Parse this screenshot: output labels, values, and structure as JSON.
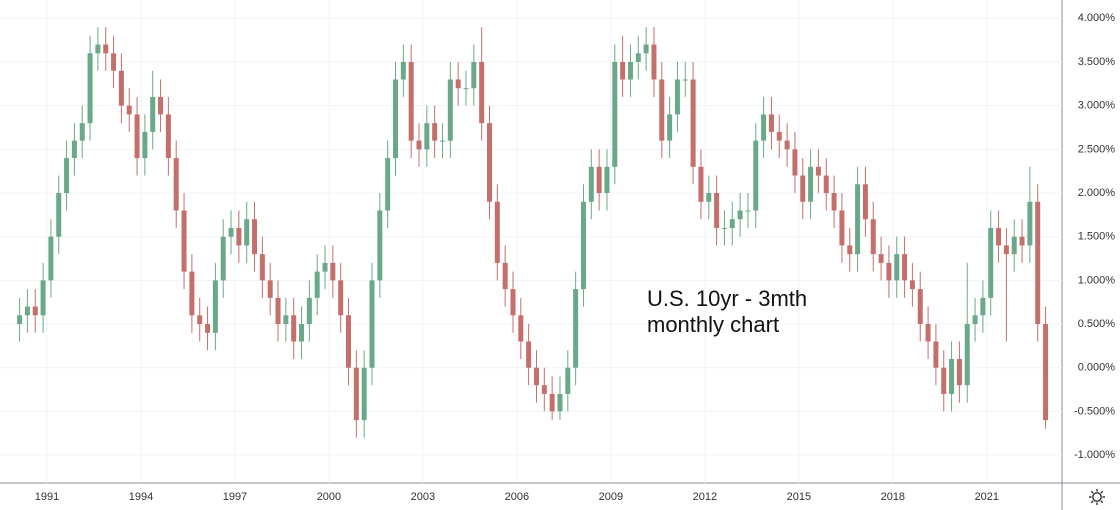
{
  "chart_data": {
    "type": "candlestick",
    "annotation": [
      "U.S. 10yr - 3mth",
      "monthly chart"
    ],
    "up_color": "#6aa889",
    "down_color": "#c46f6b",
    "grid": true,
    "xlim": [
      1989.5,
      2023.4
    ],
    "xticks": [
      1991,
      1994,
      1997,
      2000,
      2003,
      2006,
      2009,
      2012,
      2015,
      2018,
      2021
    ],
    "ylim": [
      -1.32,
      4.21
    ],
    "yticks": [
      {
        "value": 4,
        "label": "4.000%"
      },
      {
        "value": 3.5,
        "label": "3.500%"
      },
      {
        "value": 3,
        "label": "3.000%"
      },
      {
        "value": 2.5,
        "label": "2.500%"
      },
      {
        "value": 2,
        "label": "2.000%"
      },
      {
        "value": 1.5,
        "label": "1.500%"
      },
      {
        "value": 1,
        "label": "1.000%"
      },
      {
        "value": 0.5,
        "label": "0.500%"
      },
      {
        "value": 0,
        "label": "0.000%"
      },
      {
        "value": -0.5,
        "label": "-0.500%"
      },
      {
        "value": -1,
        "label": "-1.000%"
      }
    ],
    "x": [
      1990.125,
      1990.375,
      1990.625,
      1990.875,
      1991.125,
      1991.375,
      1991.625,
      1991.875,
      1992.125,
      1992.375,
      1992.625,
      1992.875,
      1993.125,
      1993.375,
      1993.625,
      1993.875,
      1994.125,
      1994.375,
      1994.625,
      1994.875,
      1995.125,
      1995.375,
      1995.625,
      1995.875,
      1996.125,
      1996.375,
      1996.625,
      1996.875,
      1997.125,
      1997.375,
      1997.625,
      1997.875,
      1998.125,
      1998.375,
      1998.625,
      1998.875,
      1999.125,
      1999.375,
      1999.625,
      1999.875,
      2000.125,
      2000.375,
      2000.625,
      2000.875,
      2001.125,
      2001.375,
      2001.625,
      2001.875,
      2002.125,
      2002.375,
      2002.625,
      2002.875,
      2003.125,
      2003.375,
      2003.625,
      2003.875,
      2004.125,
      2004.375,
      2004.625,
      2004.875,
      2005.125,
      2005.375,
      2005.625,
      2005.875,
      2006.125,
      2006.375,
      2006.625,
      2006.875,
      2007.125,
      2007.375,
      2007.625,
      2007.875,
      2008.125,
      2008.375,
      2008.625,
      2008.875,
      2009.125,
      2009.375,
      2009.625,
      2009.875,
      2010.125,
      2010.375,
      2010.625,
      2010.875,
      2011.125,
      2011.375,
      2011.625,
      2011.875,
      2012.125,
      2012.375,
      2012.625,
      2012.875,
      2013.125,
      2013.375,
      2013.625,
      2013.875,
      2014.125,
      2014.375,
      2014.625,
      2014.875,
      2015.125,
      2015.375,
      2015.625,
      2015.875,
      2016.125,
      2016.375,
      2016.625,
      2016.875,
      2017.125,
      2017.375,
      2017.625,
      2017.875,
      2018.125,
      2018.375,
      2018.625,
      2018.875,
      2019.125,
      2019.375,
      2019.625,
      2019.875,
      2020.125,
      2020.375,
      2020.625,
      2020.875,
      2021.125,
      2021.375,
      2021.625,
      2021.875,
      2022.125,
      2022.375,
      2022.625,
      2022.875
    ],
    "open": [
      0.5,
      0.6,
      0.7,
      0.6,
      1.0,
      1.5,
      2.0,
      2.4,
      2.6,
      2.8,
      3.6,
      3.7,
      3.6,
      3.4,
      3.0,
      2.9,
      2.4,
      2.7,
      3.1,
      2.9,
      2.4,
      1.8,
      1.1,
      0.6,
      0.5,
      0.4,
      1.0,
      1.5,
      1.6,
      1.4,
      1.7,
      1.3,
      1.0,
      0.8,
      0.5,
      0.6,
      0.3,
      0.5,
      0.8,
      1.1,
      1.2,
      1.0,
      0.6,
      0.0,
      -0.6,
      0.0,
      1.0,
      1.8,
      2.4,
      3.3,
      3.5,
      2.6,
      2.5,
      2.8,
      2.6,
      2.6,
      3.3,
      3.2,
      3.2,
      3.5,
      2.8,
      1.9,
      1.2,
      0.9,
      0.6,
      0.3,
      0.0,
      -0.2,
      -0.3,
      -0.5,
      -0.3,
      0.0,
      0.9,
      1.9,
      2.3,
      2.0,
      2.3,
      3.5,
      3.3,
      3.5,
      3.6,
      3.7,
      3.3,
      2.6,
      2.9,
      3.3,
      3.3,
      2.3,
      1.9,
      2.0,
      1.6,
      1.6,
      1.7,
      1.8,
      1.8,
      2.6,
      2.9,
      2.7,
      2.6,
      2.5,
      2.2,
      1.9,
      2.3,
      2.2,
      2.0,
      1.8,
      1.4,
      1.3,
      2.1,
      1.7,
      1.3,
      1.2,
      1.0,
      1.3,
      1.0,
      0.9,
      0.5,
      0.3,
      0.0,
      -0.3,
      0.1,
      -0.2,
      0.5,
      0.6,
      0.8,
      1.6,
      1.4,
      1.3,
      1.5,
      1.4,
      1.9,
      0.5
    ],
    "high": [
      0.8,
      0.9,
      0.9,
      1.2,
      1.7,
      2.2,
      2.6,
      2.8,
      3.0,
      3.8,
      3.9,
      3.9,
      3.8,
      3.6,
      3.2,
      3.1,
      2.9,
      3.4,
      3.3,
      3.1,
      2.6,
      2.0,
      1.3,
      0.8,
      0.7,
      1.2,
      1.7,
      1.8,
      1.8,
      1.9,
      1.9,
      1.5,
      1.2,
      1.0,
      0.8,
      0.8,
      0.7,
      1.0,
      1.3,
      1.4,
      1.4,
      1.2,
      0.8,
      0.2,
      0.2,
      1.2,
      2.0,
      2.6,
      3.5,
      3.7,
      3.7,
      2.8,
      3.0,
      3.0,
      2.8,
      3.5,
      3.5,
      3.4,
      3.7,
      3.9,
      3.0,
      2.1,
      1.4,
      1.1,
      0.8,
      0.5,
      0.2,
      0.0,
      -0.1,
      -0.1,
      0.2,
      1.1,
      2.1,
      2.5,
      2.5,
      2.5,
      3.7,
      3.8,
      3.7,
      3.8,
      3.9,
      3.9,
      3.5,
      3.1,
      3.5,
      3.5,
      3.5,
      2.5,
      2.2,
      2.2,
      1.8,
      1.9,
      2.0,
      2.0,
      2.8,
      3.1,
      3.1,
      2.9,
      2.8,
      2.7,
      2.4,
      2.5,
      2.5,
      2.4,
      2.2,
      2.0,
      1.6,
      2.3,
      2.3,
      1.9,
      1.5,
      1.4,
      1.5,
      1.5,
      1.2,
      1.1,
      0.7,
      0.5,
      0.2,
      0.3,
      0.3,
      1.2,
      0.8,
      1.0,
      1.8,
      1.8,
      1.6,
      1.7,
      1.7,
      2.3,
      2.1,
      0.7
    ],
    "low": [
      0.3,
      0.4,
      0.4,
      0.4,
      0.8,
      1.3,
      1.8,
      2.2,
      2.4,
      2.6,
      3.4,
      3.4,
      3.2,
      2.8,
      2.7,
      2.2,
      2.2,
      2.5,
      2.7,
      2.2,
      1.6,
      0.9,
      0.4,
      0.3,
      0.2,
      0.2,
      0.8,
      1.3,
      1.2,
      1.2,
      1.1,
      0.8,
      0.6,
      0.3,
      0.3,
      0.1,
      0.1,
      0.3,
      0.6,
      0.9,
      0.8,
      0.4,
      -0.2,
      -0.8,
      -0.8,
      -0.2,
      0.8,
      1.6,
      2.2,
      3.1,
      2.4,
      2.3,
      2.3,
      2.4,
      2.4,
      2.4,
      3.0,
      3.0,
      3.0,
      2.6,
      1.7,
      1.0,
      0.7,
      0.4,
      0.1,
      -0.2,
      -0.4,
      -0.5,
      -0.6,
      -0.6,
      -0.5,
      -0.2,
      0.7,
      1.7,
      1.8,
      1.8,
      2.1,
      3.1,
      3.1,
      3.3,
      3.4,
      3.1,
      2.4,
      2.4,
      2.7,
      3.1,
      2.1,
      1.7,
      1.7,
      1.4,
      1.4,
      1.4,
      1.5,
      1.6,
      1.6,
      2.4,
      2.5,
      2.4,
      2.3,
      2.0,
      1.7,
      1.7,
      2.0,
      1.8,
      1.6,
      1.2,
      1.1,
      1.1,
      1.5,
      1.1,
      1.0,
      0.8,
      0.8,
      0.8,
      0.7,
      0.3,
      0.1,
      -0.2,
      -0.5,
      -0.5,
      -0.4,
      -0.4,
      0.3,
      0.4,
      0.6,
      1.2,
      0.3,
      1.1,
      1.2,
      1.2,
      0.3,
      -0.7
    ],
    "close": [
      0.6,
      0.7,
      0.6,
      1.0,
      1.5,
      2.0,
      2.4,
      2.6,
      2.8,
      3.6,
      3.7,
      3.6,
      3.4,
      3.0,
      2.9,
      2.4,
      2.7,
      3.1,
      2.9,
      2.4,
      1.8,
      1.1,
      0.6,
      0.5,
      0.4,
      1.0,
      1.5,
      1.6,
      1.4,
      1.7,
      1.3,
      1.0,
      0.8,
      0.5,
      0.6,
      0.3,
      0.5,
      0.8,
      1.1,
      1.2,
      1.0,
      0.6,
      0.0,
      -0.6,
      0.0,
      1.0,
      1.8,
      2.4,
      3.3,
      3.5,
      2.6,
      2.5,
      2.8,
      2.6,
      2.6,
      3.3,
      3.2,
      3.2,
      3.5,
      2.8,
      1.9,
      1.2,
      0.9,
      0.6,
      0.3,
      0.0,
      -0.2,
      -0.3,
      -0.5,
      -0.3,
      0.0,
      0.9,
      1.9,
      2.3,
      2.0,
      2.3,
      3.5,
      3.3,
      3.5,
      3.6,
      3.7,
      3.3,
      2.6,
      2.9,
      3.3,
      3.3,
      2.3,
      1.9,
      2.0,
      1.6,
      1.6,
      1.7,
      1.8,
      1.8,
      2.6,
      2.9,
      2.7,
      2.6,
      2.5,
      2.2,
      1.9,
      2.3,
      2.2,
      2.0,
      1.8,
      1.4,
      1.3,
      2.1,
      1.7,
      1.3,
      1.2,
      1.0,
      1.3,
      1.0,
      0.9,
      0.5,
      0.3,
      0.0,
      -0.3,
      0.1,
      -0.2,
      0.5,
      0.6,
      0.8,
      1.6,
      1.4,
      1.3,
      1.5,
      1.4,
      1.9,
      0.5,
      -0.6
    ]
  }
}
